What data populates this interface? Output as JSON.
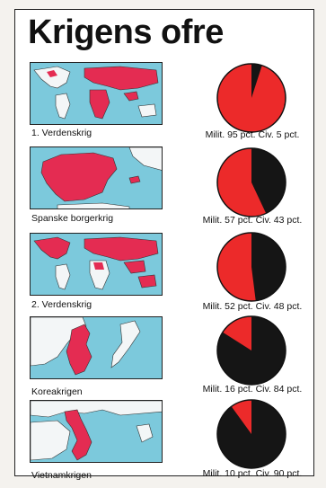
{
  "title": "Krigens ofre",
  "colors": {
    "military": "#ec2a2a",
    "civilian": "#151515",
    "sea": "#7cc9dc",
    "land": "#f3f6f7",
    "highlight": "#e42c52"
  },
  "chart_data": {
    "type": "pie",
    "title": "Krigens ofre",
    "series_labels": [
      "Milit.",
      "Civ."
    ],
    "charts": [
      {
        "name": "1. Verdenskrig",
        "military_pct": 95,
        "civilian_pct": 5,
        "label": "Milit. 95 pct. Civ. 5 pct."
      },
      {
        "name": "Spanske borgerkrig",
        "military_pct": 57,
        "civilian_pct": 43,
        "label": "Milit. 57 pct. Civ. 43 pct."
      },
      {
        "name": "2. Verdenskrig",
        "military_pct": 52,
        "civilian_pct": 48,
        "label": "Milit. 52 pct. Civ. 48 pct."
      },
      {
        "name": "Koreakrigen",
        "military_pct": 16,
        "civilian_pct": 84,
        "label": "Milit. 16 pct. Civ. 84 pct."
      },
      {
        "name": "Vietnamkrigen",
        "military_pct": 10,
        "civilian_pct": 90,
        "label": "Milit. 10 pct. Civ. 90 pct."
      }
    ]
  }
}
